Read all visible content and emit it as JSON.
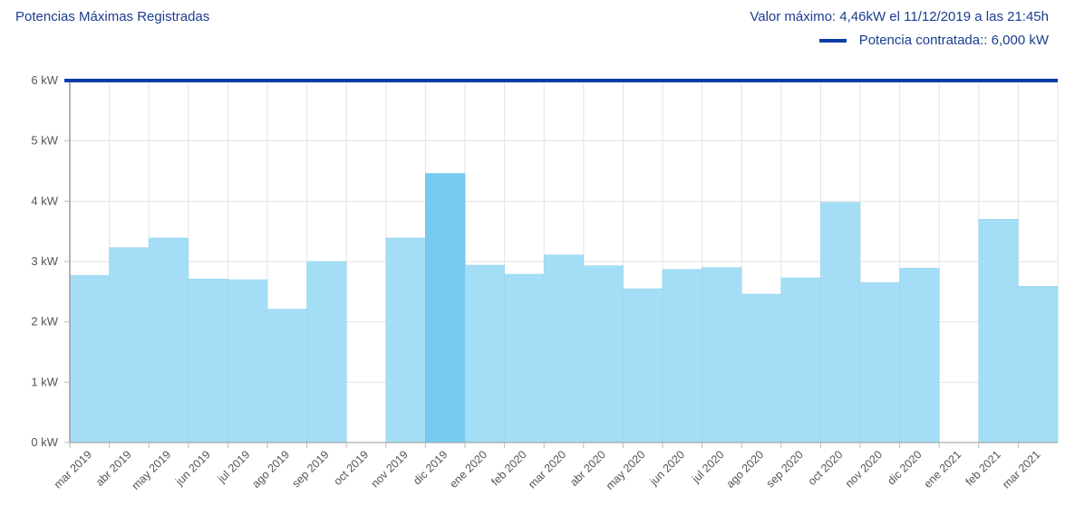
{
  "header": {
    "title": "Potencias Máximas Registradas",
    "max_label": "Valor máximo:",
    "max_value": "4,46kW el 11/12/2019 a las 21:45h",
    "legend_label": "Potencia contratada::",
    "legend_value": "6,000 kW"
  },
  "colors": {
    "bar": "#a4def6",
    "bar_highlight": "#76caef",
    "contract_line": "#0a3ba9",
    "text": "#1a3d8f",
    "grid": "#e3e3e3"
  },
  "chart_data": {
    "type": "bar",
    "title": "Potencias Máximas Registradas",
    "xlabel": "",
    "ylabel": "",
    "ylim": [
      0,
      6
    ],
    "yticks": [
      0,
      1,
      2,
      3,
      4,
      5,
      6
    ],
    "ytick_labels": [
      "0 kW",
      "1 kW",
      "2 kW",
      "3 kW",
      "4 kW",
      "5 kW",
      "6 kW"
    ],
    "categories": [
      "mar 2019",
      "abr 2019",
      "may 2019",
      "jun 2019",
      "jul 2019",
      "ago 2019",
      "sep 2019",
      "oct 2019",
      "nov 2019",
      "dic 2019",
      "ene 2020",
      "feb 2020",
      "mar 2020",
      "abr 2020",
      "may 2020",
      "jun 2020",
      "jul 2020",
      "ago 2020",
      "sep 2020",
      "oct 2020",
      "nov 2020",
      "dic 2020",
      "ene 2021",
      "feb 2021",
      "mar 2021"
    ],
    "values": [
      2.77,
      3.23,
      3.39,
      2.71,
      2.7,
      2.21,
      3.0,
      0,
      3.39,
      4.46,
      2.94,
      2.79,
      3.11,
      2.93,
      2.55,
      2.87,
      2.9,
      2.46,
      2.73,
      3.98,
      2.65,
      2.89,
      0,
      3.7,
      2.59
    ],
    "highlight_index": 9,
    "reference_line": {
      "value": 6,
      "label": "Potencia contratada::"
    },
    "grid": true
  }
}
